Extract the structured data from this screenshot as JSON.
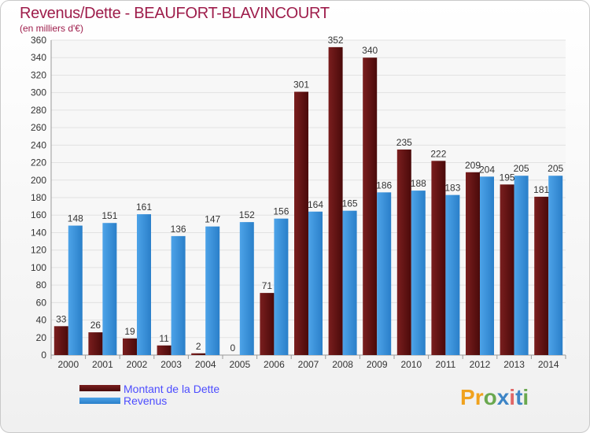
{
  "header": {
    "title": "Revenus/Dette - BEAUFORT-BLAVINCOURT",
    "subtitle": "(en milliers d'€)"
  },
  "legend": {
    "debt_label": "Montant de la Dette",
    "revenue_label": "Revenus"
  },
  "logo": {
    "letters": [
      "P",
      "r",
      "o",
      "x",
      "i",
      "t",
      "i"
    ],
    "colors": [
      "#f0a21e",
      "#f0a21e",
      "#6aa84f",
      "#3d85c6",
      "#e06666",
      "#3d85c6",
      "#6aa84f"
    ]
  },
  "colors": {
    "debt": "#7a1e1e",
    "debt_dark": "#4a0a0a",
    "revenue": "#4da3e8",
    "revenue_dark": "#2a7fc9",
    "axis_text": "#333333",
    "grid": "#e2e2e2"
  },
  "chart_data": {
    "type": "bar",
    "categories": [
      "2000",
      "2001",
      "2002",
      "2003",
      "2004",
      "2005",
      "2006",
      "2007",
      "2008",
      "2009",
      "2010",
      "2011",
      "2012",
      "2013",
      "2014"
    ],
    "series": [
      {
        "name": "Montant de la Dette",
        "values": [
          33,
          26,
          19,
          11,
          2,
          0,
          71,
          301,
          352,
          340,
          235,
          222,
          209,
          195,
          181
        ]
      },
      {
        "name": "Revenus",
        "values": [
          148,
          151,
          161,
          136,
          147,
          152,
          156,
          164,
          165,
          186,
          188,
          183,
          204,
          205,
          205
        ]
      }
    ],
    "data_labels": {
      "debt": [
        "33",
        "26",
        "19",
        "11",
        "2",
        "0",
        "71",
        "301",
        "352",
        "340",
        "235",
        "222",
        "209",
        "195",
        "181"
      ],
      "revenue": [
        "148",
        "151",
        "161",
        "136",
        "147",
        "152",
        "156",
        "164",
        "165",
        "186",
        "188",
        "183",
        "204",
        "205",
        "205"
      ]
    },
    "ylim": [
      0,
      360
    ],
    "yticks": [
      0,
      20,
      40,
      60,
      80,
      100,
      120,
      140,
      160,
      180,
      200,
      220,
      240,
      260,
      280,
      300,
      320,
      340,
      360
    ],
    "grid": true,
    "legend_position": "bottom-left"
  }
}
